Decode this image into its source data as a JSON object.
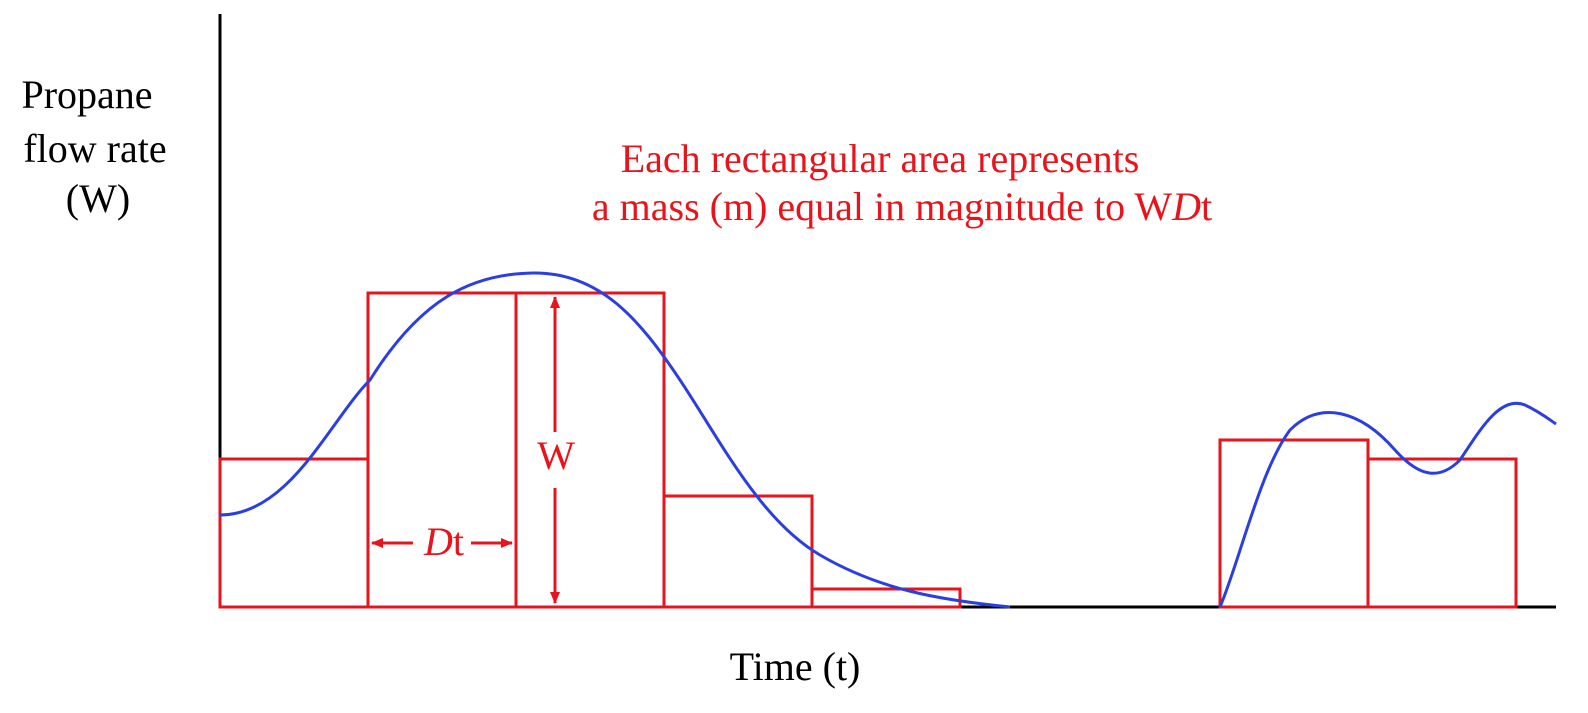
{
  "labels": {
    "y_axis": [
      "Propane",
      "flow rate",
      "(W)"
    ],
    "x_axis": "Time (t)",
    "annotation_line1": "Each rectangular area represents",
    "annotation_line2_prefix": "a mass (m) equal in magnitude to W",
    "annotation_line2_italic": "D",
    "annotation_line2_suffix": "t",
    "rect_height": "W",
    "rect_width_italic": "D",
    "rect_width_suffix": "t"
  },
  "colors": {
    "axis": "#000000",
    "curve": "#2b3fe0",
    "rectangles": "#e8141c",
    "annotation": "#e8141c"
  }
}
